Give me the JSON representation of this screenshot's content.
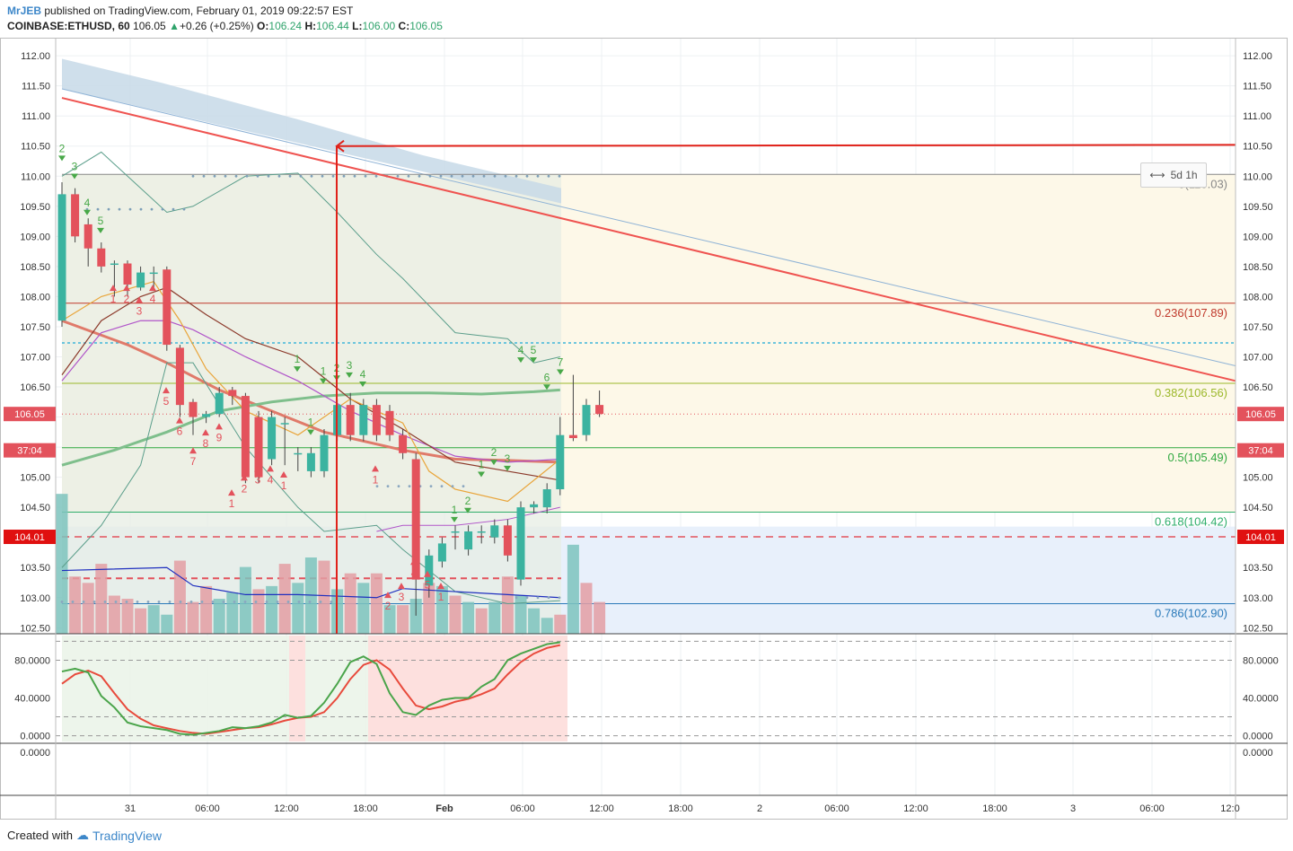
{
  "header": {
    "user": "MrJEB",
    "published_text": "published on TradingView.com, February 01, 2019 09:22:57 EST",
    "symbol": "COINBASE:ETHUSD, 60",
    "last": "106.05",
    "change": "+0.26 (+0.25%)",
    "open_label": "O:",
    "open": "106.24",
    "high_label": "H:",
    "high": "106.44",
    "low_label": "L:",
    "low": "106.00",
    "close_label": "C:",
    "close": "106.05"
  },
  "footer": {
    "created_with": "Created with",
    "brand": "TradingView"
  },
  "range_tag": {
    "icon": "range-icon",
    "label": "5d 1h"
  },
  "colors": {
    "up": "#3bb3a0",
    "down": "#e3525c",
    "trend": "#ef5350",
    "arrow": "#e0221a",
    "fib_bg": "#fdf8e8",
    "blue_band": "#c9d9ea"
  },
  "chart_data": {
    "type": "candlestick",
    "symbol": "COINBASE:ETHUSD",
    "interval": "60",
    "price_axis": {
      "ylim": [
        102.4,
        112.3
      ],
      "ticks": [
        "112.00",
        "111.50",
        "111.00",
        "110.50",
        "110.00",
        "109.50",
        "109.00",
        "108.50",
        "108.00",
        "107.50",
        "107.00",
        "106.50",
        "106.00",
        "105.50",
        "105.00",
        "104.50",
        "104.00",
        "103.50",
        "103.00",
        "102.50"
      ],
      "labels": [
        {
          "text": "106.05",
          "value": 106.05,
          "color": "#e3525c"
        },
        {
          "text": "37:04",
          "value": 105.7,
          "color": "#e3525c"
        },
        {
          "text": "104.01",
          "value": 104.01,
          "color": "#e01010"
        }
      ]
    },
    "time_axis": {
      "labels": [
        "31",
        "06:00",
        "12:00",
        "18:00",
        "Feb",
        "06:00",
        "12:00",
        "18:00",
        "2",
        "06:00",
        "12:00",
        "18:00",
        "3",
        "06:00",
        "12:0"
      ]
    },
    "oscillator_axis": {
      "ylim": [
        -8,
        108
      ],
      "ticks": [
        "80.0000",
        "40.0000",
        "0.0000"
      ]
    },
    "empty_pane_axis": {
      "ticks": [
        "0.0000"
      ]
    },
    "fib_levels": [
      {
        "label": "0(110.03)",
        "value": 110.03,
        "color": "#888888"
      },
      {
        "label": "0.236(107.89)",
        "value": 107.89,
        "color": "#c0392b"
      },
      {
        "label": "0.382(106.56)",
        "value": 106.56,
        "color": "#9cb82a"
      },
      {
        "label": "0.5(105.49)",
        "value": 105.49,
        "color": "#2fa83f"
      },
      {
        "label": "0.618(104.42)",
        "value": 104.42,
        "color": "#2fae6b"
      },
      {
        "label": "0.786(102.90)",
        "value": 102.9,
        "color": "#2979b9"
      }
    ],
    "candles": [
      [
        107.6,
        109.7,
        107.5,
        109.9
      ],
      [
        109.7,
        109.0,
        108.9,
        109.8
      ],
      [
        109.2,
        108.8,
        108.5,
        109.3
      ],
      [
        108.8,
        108.5,
        108.4,
        108.9
      ],
      [
        108.55,
        108.55,
        108.0,
        108.6
      ],
      [
        108.55,
        108.2,
        108.0,
        108.6
      ],
      [
        108.15,
        108.4,
        108.1,
        108.5
      ],
      [
        108.4,
        108.4,
        108.15,
        108.5
      ],
      [
        108.45,
        107.2,
        107.1,
        108.5
      ],
      [
        107.15,
        106.2,
        106.0,
        107.2
      ],
      [
        106.25,
        106.0,
        105.7,
        106.3
      ],
      [
        106.0,
        106.05,
        105.9,
        106.1
      ],
      [
        106.05,
        106.4,
        106.0,
        106.5
      ],
      [
        106.45,
        106.35,
        106.2,
        106.5
      ],
      [
        106.35,
        105.0,
        104.9,
        106.4
      ],
      [
        106.0,
        105.0,
        104.9,
        106.1
      ],
      [
        105.3,
        106.0,
        105.2,
        106.1
      ],
      [
        105.9,
        105.9,
        105.2,
        106.0
      ],
      [
        105.4,
        105.4,
        105.1,
        105.5
      ],
      [
        105.1,
        105.4,
        105.0,
        105.5
      ],
      [
        105.1,
        105.7,
        105.0,
        105.8
      ],
      [
        105.7,
        106.2,
        105.6,
        106.3
      ],
      [
        106.2,
        105.7,
        105.6,
        106.4
      ],
      [
        105.7,
        106.2,
        105.6,
        106.3
      ],
      [
        106.2,
        105.7,
        105.6,
        106.3
      ],
      [
        106.1,
        105.7,
        105.6,
        106.2
      ],
      [
        105.7,
        105.4,
        105.3,
        105.8
      ],
      [
        105.3,
        103.3,
        102.7,
        105.4
      ],
      [
        103.2,
        103.7,
        103.0,
        103.8
      ],
      [
        103.6,
        103.9,
        103.5,
        104.0
      ],
      [
        104.1,
        104.1,
        103.8,
        104.2
      ],
      [
        103.8,
        104.1,
        103.7,
        104.2
      ],
      [
        104.1,
        104.1,
        103.9,
        104.2
      ],
      [
        104.0,
        104.2,
        103.9,
        104.3
      ],
      [
        104.2,
        103.7,
        103.6,
        104.3
      ],
      [
        103.3,
        104.5,
        103.2,
        104.6
      ],
      [
        104.5,
        104.55,
        104.4,
        104.6
      ],
      [
        104.5,
        104.8,
        104.4,
        104.9
      ],
      [
        104.8,
        105.7,
        104.7,
        106.0
      ],
      [
        105.7,
        105.65,
        105.6,
        106.7
      ],
      [
        105.7,
        106.2,
        105.6,
        106.3
      ],
      [
        106.2,
        106.05,
        106.0,
        106.44
      ]
    ],
    "volume": {
      "ylim": [
        0,
        2.4
      ],
      "values": [
        [
          2.2,
          "up"
        ],
        [
          0.9,
          "down"
        ],
        [
          0.8,
          "down"
        ],
        [
          1.1,
          "down"
        ],
        [
          0.6,
          "down"
        ],
        [
          0.55,
          "down"
        ],
        [
          0.4,
          "down"
        ],
        [
          0.45,
          "up"
        ],
        [
          0.3,
          "up"
        ],
        [
          1.15,
          "down"
        ],
        [
          0.5,
          "down"
        ],
        [
          0.75,
          "down"
        ],
        [
          0.55,
          "up"
        ],
        [
          0.65,
          "up"
        ],
        [
          1.05,
          "up"
        ],
        [
          0.7,
          "down"
        ],
        [
          0.75,
          "up"
        ],
        [
          1.1,
          "down"
        ],
        [
          0.8,
          "up"
        ],
        [
          1.2,
          "up"
        ],
        [
          1.15,
          "down"
        ],
        [
          0.7,
          "up"
        ],
        [
          0.95,
          "down"
        ],
        [
          0.8,
          "up"
        ],
        [
          0.95,
          "down"
        ],
        [
          0.45,
          "up"
        ],
        [
          0.45,
          "down"
        ],
        [
          0.55,
          "up"
        ],
        [
          0.8,
          "down"
        ],
        [
          0.75,
          "up"
        ],
        [
          0.6,
          "down"
        ],
        [
          0.5,
          "up"
        ],
        [
          0.4,
          "down"
        ],
        [
          0.5,
          "up"
        ],
        [
          0.9,
          "down"
        ],
        [
          0.6,
          "up"
        ],
        [
          0.4,
          "up"
        ],
        [
          0.25,
          "up"
        ],
        [
          0.3,
          "down"
        ],
        [
          1.4,
          "up"
        ],
        [
          0.8,
          "down"
        ],
        [
          0.5,
          "down"
        ]
      ]
    },
    "stoch": {
      "k": [
        68,
        71,
        67,
        42,
        30,
        14,
        10,
        8,
        6,
        2,
        1,
        3,
        5,
        9,
        8,
        10,
        14,
        22,
        19,
        21,
        35,
        55,
        78,
        84,
        76,
        45,
        25,
        22,
        32,
        38,
        40,
        40,
        52,
        60,
        80,
        87,
        92,
        97,
        99
      ],
      "d": [
        55,
        65,
        69,
        63,
        45,
        28,
        18,
        11,
        8,
        5,
        3,
        2,
        4,
        6,
        8,
        9,
        12,
        16,
        19,
        20,
        25,
        40,
        60,
        75,
        80,
        70,
        50,
        32,
        28,
        31,
        36,
        39,
        44,
        50,
        65,
        78,
        87,
        93,
        96
      ]
    },
    "markers": [
      {
        "text": "2",
        "v": 110.4,
        "c": "#48a848"
      },
      {
        "text": "3",
        "v": 110.1,
        "c": "#48a848"
      },
      {
        "text": "4",
        "v": 109.5,
        "c": "#48a848"
      },
      {
        "text": "5",
        "v": 109.2,
        "c": "#48a848"
      },
      {
        "text": "1",
        "v": 107.9,
        "c": "#e3525c"
      },
      {
        "text": "2",
        "v": 107.9,
        "c": "#e3525c"
      },
      {
        "text": "3",
        "v": 107.7,
        "c": "#e3525c"
      },
      {
        "text": "4",
        "v": 107.9,
        "c": "#e3525c"
      },
      {
        "text": "5",
        "v": 106.2,
        "c": "#e3525c"
      },
      {
        "text": "6",
        "v": 105.7,
        "c": "#e3525c"
      },
      {
        "text": "7",
        "v": 105.2,
        "c": "#e3525c"
      },
      {
        "text": "8",
        "v": 105.5,
        "c": "#e3525c"
      },
      {
        "text": "9",
        "v": 105.6,
        "c": "#e3525c"
      },
      {
        "text": "1",
        "v": 104.5,
        "c": "#e3525c"
      },
      {
        "text": "2",
        "v": 104.75,
        "c": "#e3525c"
      },
      {
        "text": "3",
        "v": 104.9,
        "c": "#e3525c"
      },
      {
        "text": "4",
        "v": 104.9,
        "c": "#e3525c"
      },
      {
        "text": "1",
        "v": 104.8,
        "c": "#e3525c"
      },
      {
        "text": "1",
        "v": 106.9,
        "c": "#48a848"
      },
      {
        "text": "1",
        "v": 105.85,
        "c": "#48a848"
      },
      {
        "text": "1",
        "v": 106.7,
        "c": "#48a848"
      },
      {
        "text": "2",
        "v": 106.75,
        "c": "#48a848"
      },
      {
        "text": "3",
        "v": 106.8,
        "c": "#48a848"
      },
      {
        "text": "4",
        "v": 106.65,
        "c": "#48a848"
      },
      {
        "text": "1",
        "v": 104.9,
        "c": "#e3525c"
      },
      {
        "text": "2",
        "v": 102.8,
        "c": "#e3525c"
      },
      {
        "text": "3",
        "v": 102.95,
        "c": "#e3525c"
      },
      {
        "text": "4",
        "v": 103.35,
        "c": "#e3525c"
      },
      {
        "text": "5",
        "v": 103.15,
        "c": "#e3525c"
      },
      {
        "text": "1",
        "v": 102.95,
        "c": "#e3525c"
      },
      {
        "text": "1",
        "v": 104.4,
        "c": "#48a848"
      },
      {
        "text": "2",
        "v": 104.55,
        "c": "#48a848"
      },
      {
        "text": "1",
        "v": 105.15,
        "c": "#48a848"
      },
      {
        "text": "2",
        "v": 105.35,
        "c": "#48a848"
      },
      {
        "text": "3",
        "v": 105.25,
        "c": "#48a848"
      },
      {
        "text": "4",
        "v": 107.05,
        "c": "#48a848"
      },
      {
        "text": "5",
        "v": 107.05,
        "c": "#48a848"
      },
      {
        "text": "6",
        "v": 106.6,
        "c": "#48a848"
      },
      {
        "text": "7",
        "v": 106.85,
        "c": "#48a848"
      }
    ]
  }
}
